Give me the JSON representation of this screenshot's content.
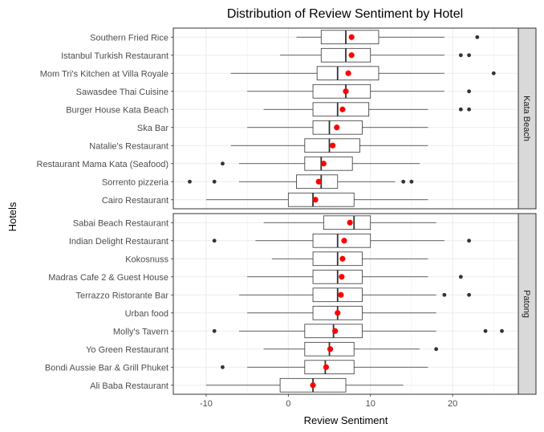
{
  "chart_data": {
    "type": "boxplot",
    "title": "Distribution of Review Sentiment by Hotel",
    "xlabel": "Review Sentiment",
    "ylabel": "Hotels",
    "xlim": [
      -14,
      28
    ],
    "xticks": [
      -10,
      0,
      10,
      20
    ],
    "grid": true,
    "mean_color": "#ff0000",
    "panels": [
      {
        "name": "Kata Beach",
        "hotels": [
          {
            "name": "Southern Fried Rice",
            "min": 1,
            "q1": 4,
            "median": 7,
            "q3": 11,
            "max": 19,
            "mean": 7.7,
            "outliers": [
              23
            ]
          },
          {
            "name": "Istanbul Turkish Restaurant",
            "min": -1,
            "q1": 4,
            "median": 7,
            "q3": 10,
            "max": 19,
            "mean": 7.7,
            "outliers": [
              21,
              22
            ]
          },
          {
            "name": "Mom Tri's Kitchen at Villa Royale",
            "min": -7,
            "q1": 3.5,
            "median": 6,
            "q3": 11,
            "max": 19,
            "mean": 7.3,
            "outliers": [
              25
            ]
          },
          {
            "name": "Sawasdee Thai Cuisine",
            "min": -5,
            "q1": 3,
            "median": 7,
            "q3": 10,
            "max": 19,
            "mean": 7,
            "outliers": [
              22
            ]
          },
          {
            "name": "Burger House Kata Beach",
            "min": -3,
            "q1": 3,
            "median": 6,
            "q3": 9.8,
            "max": 17,
            "mean": 6.6,
            "outliers": [
              21,
              22
            ]
          },
          {
            "name": "Ska Bar",
            "min": -5,
            "q1": 3,
            "median": 5,
            "q3": 9,
            "max": 17,
            "mean": 5.9,
            "outliers": []
          },
          {
            "name": "Natalie's Restaurant",
            "min": -7,
            "q1": 2,
            "median": 5,
            "q3": 8.7,
            "max": 17,
            "mean": 5.4,
            "outliers": []
          },
          {
            "name": "Restaurant Mama Kata (Seafood)",
            "min": -6,
            "q1": 2,
            "median": 4,
            "q3": 7.8,
            "max": 16,
            "mean": 4.3,
            "outliers": [
              -8
            ]
          },
          {
            "name": "Sorrento pizzeria",
            "min": -6,
            "q1": 1,
            "median": 4,
            "q3": 6,
            "max": 13,
            "mean": 3.7,
            "outliers": [
              -12,
              -9,
              14,
              15
            ]
          },
          {
            "name": "Cairo Restaurant",
            "min": -10,
            "q1": 0,
            "median": 3,
            "q3": 8,
            "max": 17,
            "mean": 3.3,
            "outliers": []
          }
        ]
      },
      {
        "name": "Patong",
        "hotels": [
          {
            "name": "Sabai Beach Restaurant",
            "min": -3,
            "q1": 4.3,
            "median": 8,
            "q3": 10,
            "max": 18,
            "mean": 7.5,
            "outliers": []
          },
          {
            "name": "Indian Delight Restaurant",
            "min": -4,
            "q1": 3,
            "median": 6,
            "q3": 10,
            "max": 19,
            "mean": 6.8,
            "outliers": [
              -9,
              22
            ]
          },
          {
            "name": "Kokosnuss",
            "min": -2,
            "q1": 3,
            "median": 6,
            "q3": 9,
            "max": 17,
            "mean": 6.6,
            "outliers": []
          },
          {
            "name": "Madras Cafe 2 & Guest House",
            "min": -5,
            "q1": 3,
            "median": 6,
            "q3": 9,
            "max": 17,
            "mean": 6.5,
            "outliers": [
              21
            ]
          },
          {
            "name": "Terrazzo Ristorante Bar",
            "min": -6,
            "q1": 3,
            "median": 6,
            "q3": 9,
            "max": 18,
            "mean": 6.4,
            "outliers": [
              19,
              22
            ]
          },
          {
            "name": "Urban food",
            "min": -5,
            "q1": 3,
            "median": 6,
            "q3": 9,
            "max": 18,
            "mean": 6,
            "outliers": []
          },
          {
            "name": "Molly's Tavern",
            "min": -6,
            "q1": 2,
            "median": 5.5,
            "q3": 9,
            "max": 18,
            "mean": 5.7,
            "outliers": [
              -9,
              24,
              26
            ]
          },
          {
            "name": "Yo Green Restaurant",
            "min": -3,
            "q1": 2,
            "median": 5,
            "q3": 8,
            "max": 16,
            "mean": 5.1,
            "outliers": [
              18
            ]
          },
          {
            "name": "Bondi Aussie Bar & Grill Phuket",
            "min": -5,
            "q1": 2,
            "median": 4.5,
            "q3": 8,
            "max": 17,
            "mean": 4.6,
            "outliers": [
              -8
            ]
          },
          {
            "name": "Ali Baba Restaurant",
            "min": -10,
            "q1": -1,
            "median": 3,
            "q3": 7,
            "max": 14,
            "mean": 3,
            "outliers": []
          }
        ]
      }
    ]
  }
}
